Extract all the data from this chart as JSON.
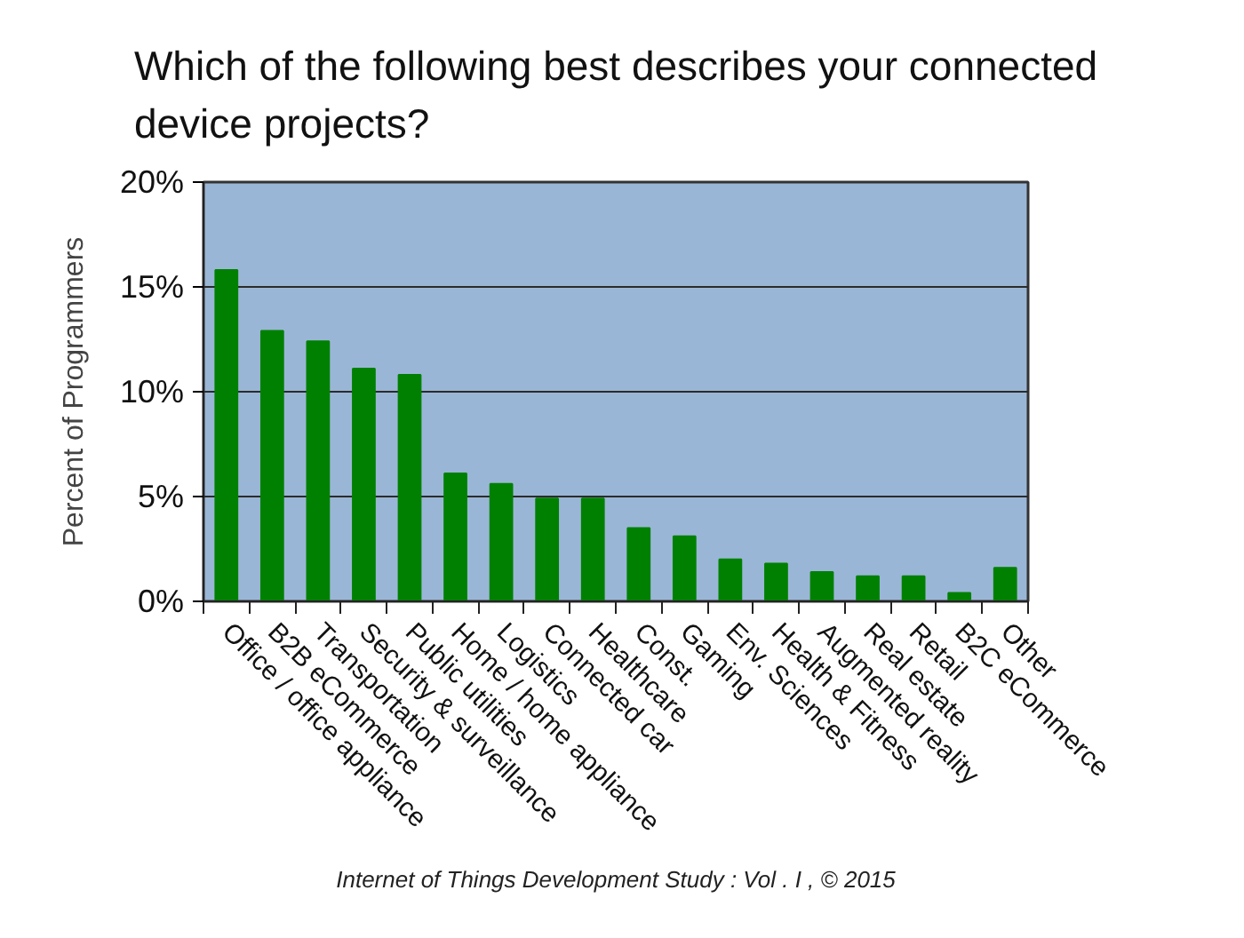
{
  "chart_data": {
    "type": "bar",
    "title": "Which of the following best describes your connected device projects?",
    "ylabel": "Percent of Programmers",
    "categories": [
      "Office / office appliance",
      "B2B eCommerce",
      "Transportation",
      "Security & surveillance",
      "Public utilities",
      "Home / home appliance",
      "Logistics",
      "Connected car",
      "Healthcare",
      "Const.",
      "Gaming",
      "Env. Sciences",
      "Health & Fitness",
      "Augmented reality",
      "Real estate",
      "Retail",
      "B2C eCommerce",
      "Other"
    ],
    "values": [
      15.8,
      12.9,
      12.4,
      11.1,
      10.8,
      6.1,
      5.6,
      4.9,
      4.9,
      3.5,
      3.1,
      2.0,
      1.8,
      1.4,
      1.2,
      1.2,
      0.4,
      1.6
    ],
    "color": "#008000",
    "ylim": [
      0,
      20
    ],
    "yticks": [
      {
        "value": 0,
        "label": "0%"
      },
      {
        "value": 5,
        "label": "5%"
      },
      {
        "value": 10,
        "label": "10%"
      },
      {
        "value": 15,
        "label": "15%"
      },
      {
        "value": 20,
        "label": "20%"
      }
    ],
    "grid": "y",
    "annotations": [
      "Internet of Things Development Study : Vol . I , © 2015"
    ]
  }
}
